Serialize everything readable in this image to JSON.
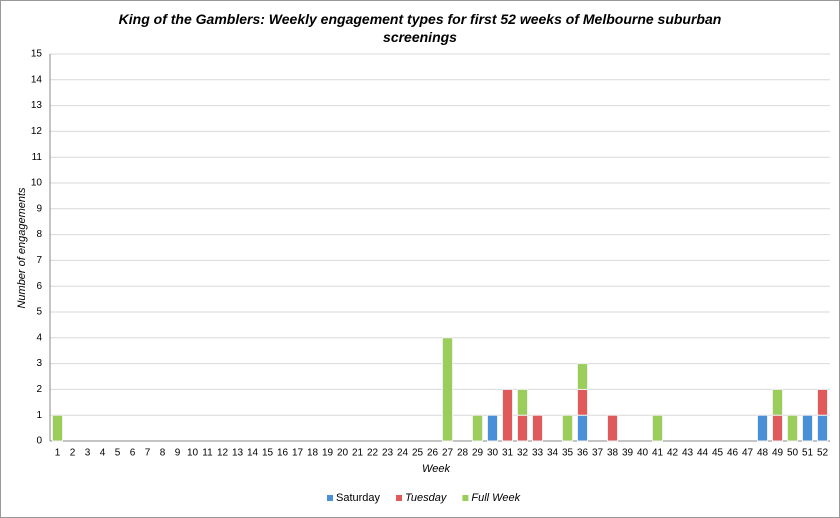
{
  "chart_data": {
    "type": "stacked-bar",
    "title": "King of the Gamblers: Weekly engagement types for first 52 weeks of Melbourne suburban screenings",
    "x_label": "Week",
    "y_label": "Number of engagements",
    "categories": [
      1,
      2,
      3,
      4,
      5,
      6,
      7,
      8,
      9,
      10,
      11,
      12,
      13,
      14,
      15,
      16,
      17,
      18,
      19,
      20,
      21,
      22,
      23,
      24,
      25,
      26,
      27,
      28,
      29,
      30,
      31,
      32,
      33,
      34,
      35,
      36,
      37,
      38,
      39,
      40,
      41,
      42,
      43,
      44,
      45,
      46,
      47,
      48,
      49,
      50,
      51,
      52
    ],
    "series": [
      {
        "name": "Saturday",
        "color": "#4a90d9",
        "values": [
          0,
          0,
          0,
          0,
          0,
          0,
          0,
          0,
          0,
          0,
          0,
          0,
          0,
          0,
          0,
          0,
          0,
          0,
          0,
          0,
          0,
          0,
          0,
          0,
          0,
          0,
          0,
          0,
          0,
          1,
          0,
          0,
          0,
          0,
          0,
          1,
          0,
          0,
          0,
          0,
          0,
          0,
          0,
          0,
          0,
          0,
          0,
          1,
          0,
          0,
          1,
          1
        ]
      },
      {
        "name": "Tuesday",
        "color": "#e05a5a",
        "values": [
          0,
          0,
          0,
          0,
          0,
          0,
          0,
          0,
          0,
          0,
          0,
          0,
          0,
          0,
          0,
          0,
          0,
          0,
          0,
          0,
          0,
          0,
          0,
          0,
          0,
          0,
          0,
          0,
          0,
          0,
          2,
          1,
          1,
          0,
          0,
          1,
          0,
          1,
          0,
          0,
          0,
          0,
          0,
          0,
          0,
          0,
          0,
          0,
          1,
          0,
          0,
          1
        ]
      },
      {
        "name": "Full Week",
        "color": "#9acd5a",
        "values": [
          1,
          0,
          0,
          0,
          0,
          0,
          0,
          0,
          0,
          0,
          0,
          0,
          0,
          0,
          0,
          0,
          0,
          0,
          0,
          0,
          0,
          0,
          0,
          0,
          0,
          0,
          4,
          0,
          1,
          0,
          0,
          1,
          0,
          0,
          1,
          1,
          0,
          0,
          0,
          0,
          1,
          0,
          0,
          0,
          0,
          0,
          0,
          0,
          1,
          1,
          0,
          0
        ]
      }
    ],
    "ylim": [
      0,
      15
    ],
    "yticks": [
      0,
      1,
      2,
      3,
      4,
      5,
      6,
      7,
      8,
      9,
      10,
      11,
      12,
      13,
      14,
      15
    ],
    "grid": true,
    "legend": "bottom"
  }
}
